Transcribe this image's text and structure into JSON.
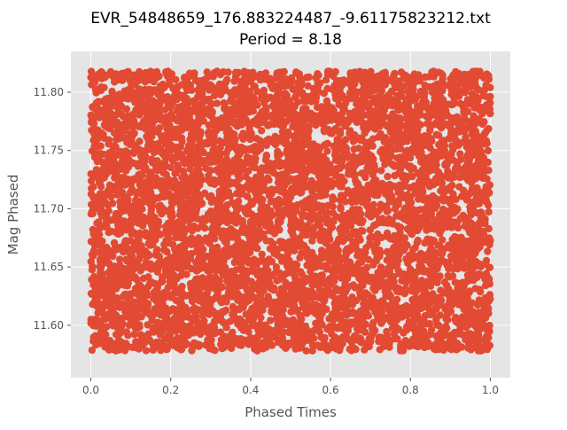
{
  "chart_data": {
    "type": "scatter",
    "title": "EVR_54848659_176.883224487_-9.61175823212.txt",
    "subtitle": "Period = 8.18",
    "xlabel": "Phased Times",
    "ylabel": "Mag Phased",
    "xlim": [
      -0.05,
      1.05
    ],
    "ylim": [
      11.555,
      11.835
    ],
    "x_ticks": [
      0.0,
      0.2,
      0.4,
      0.6,
      0.8,
      1.0
    ],
    "x_tick_labels": [
      "0.0",
      "0.2",
      "0.4",
      "0.6",
      "0.8",
      "1.0"
    ],
    "y_ticks": [
      11.6,
      11.65,
      11.7,
      11.75,
      11.8
    ],
    "y_tick_labels": [
      "11.60",
      "11.65",
      "11.70",
      "11.75",
      "11.80"
    ],
    "grid": true,
    "colors": {
      "marker": "#E24A33",
      "plot_background": "#E5E5E5",
      "grid": "#FFFFFF",
      "text": "#555555"
    },
    "series": [
      {
        "point_count_estimate": 6000,
        "x_range": [
          0.0,
          1.0
        ],
        "y_range": [
          11.578,
          11.818
        ],
        "distribution": "approximately uniform in phase and magnitude (no clear periodic signal)"
      }
    ]
  }
}
